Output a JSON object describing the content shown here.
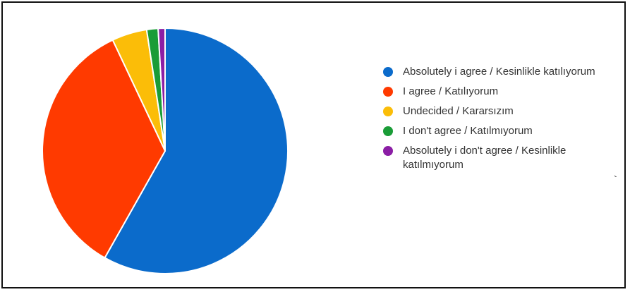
{
  "chart_data": {
    "type": "pie",
    "title": "",
    "legend_position": "right",
    "slices": [
      {
        "label": "Absolutely i agree / Kesinlikle katılıyorum",
        "value": 58.0,
        "color": "#0b6bcb"
      },
      {
        "label": "I agree / Katılıyorum",
        "value": 34.7,
        "color": "#ff3a00"
      },
      {
        "label": "Undecided / Kararsızım",
        "value": 4.6,
        "color": "#fbbd08"
      },
      {
        "label": "I don't agree / Katılmıyorum",
        "value": 1.5,
        "color": "#1a9c37"
      },
      {
        "label": "Absolutely i don't agree / Kesinlikle katılmıyorum",
        "value": 0.9,
        "color": "#8b1ea5"
      }
    ]
  },
  "legend_more_glyph": "˞"
}
